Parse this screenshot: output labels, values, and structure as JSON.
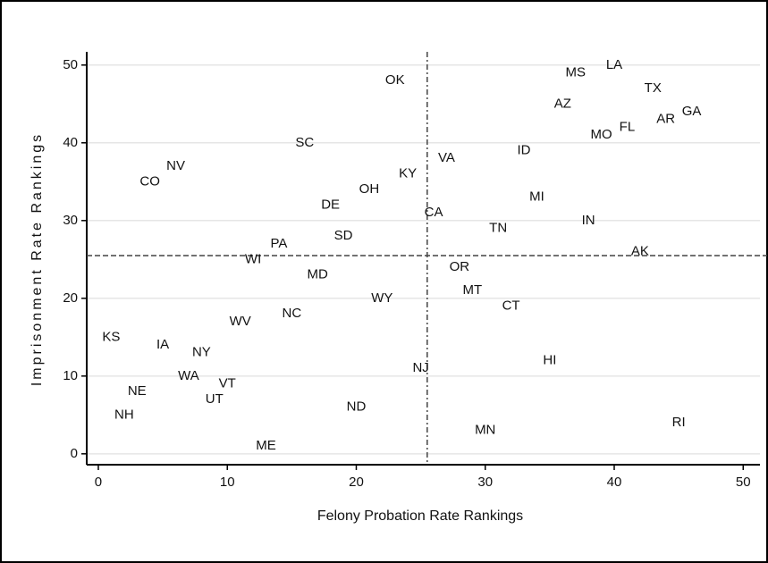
{
  "chart_data": {
    "type": "scatter",
    "x_label": "Felony Probation Rate Rankings",
    "y_label": "Imprisonment Rate Rankings",
    "labels": [
      "OK",
      "LA",
      "MS",
      "TX",
      "AZ",
      "GA",
      "AR",
      "FL",
      "MO",
      "SC",
      "ID",
      "VA",
      "NV",
      "KY",
      "CO",
      "OH",
      "MI",
      "DE",
      "CA",
      "IN",
      "TN",
      "SD",
      "PA",
      "AK",
      "WI",
      "OR",
      "MD",
      "MT",
      "WY",
      "CT",
      "NC",
      "WV",
      "KS",
      "IA",
      "NY",
      "HI",
      "NJ",
      "WA",
      "VT",
      "NE",
      "UT",
      "ND",
      "NH",
      "RI",
      "MN",
      "ME"
    ],
    "x": [
      23,
      40,
      37,
      43,
      36,
      46,
      44,
      41,
      39,
      16,
      33,
      27,
      6,
      24,
      4,
      21,
      34,
      18,
      26,
      38,
      31,
      19,
      14,
      42,
      12,
      28,
      17,
      29,
      22,
      32,
      15,
      11,
      1,
      5,
      8,
      35,
      25,
      7,
      10,
      3,
      9,
      20,
      2,
      45,
      30,
      13
    ],
    "y": [
      48,
      50,
      49,
      47,
      45,
      44,
      43,
      42,
      41,
      40,
      39,
      38,
      37,
      36,
      35,
      34,
      33,
      32,
      31,
      30,
      29,
      28,
      27,
      26,
      25,
      24,
      23,
      21,
      20,
      19,
      18,
      17,
      15,
      14,
      13,
      12,
      11,
      10,
      9,
      8,
      7,
      6,
      5,
      4,
      3,
      1
    ],
    "xlim": [
      -0.9,
      51.3
    ],
    "ylim": [
      -1.4,
      51.7
    ],
    "xticks": [
      0,
      10,
      20,
      30,
      40,
      50
    ],
    "yticks": [
      0,
      10,
      20,
      30,
      40,
      50
    ],
    "reference_lines": {
      "x": 25.5,
      "y": 25.5
    },
    "grid": true
  }
}
